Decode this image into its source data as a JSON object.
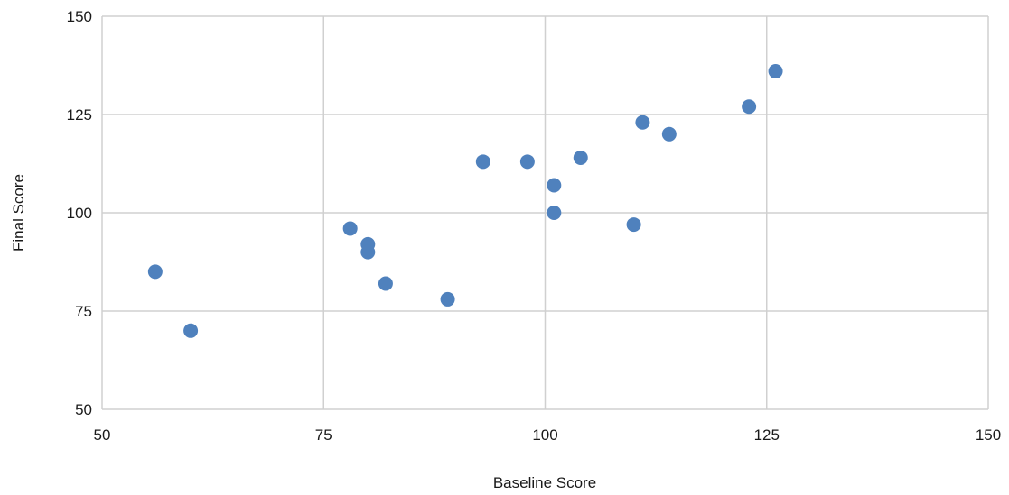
{
  "chart_data": {
    "type": "scatter",
    "title": "",
    "xlabel": "Baseline Score",
    "ylabel": "Final Score",
    "xlim": [
      50,
      150
    ],
    "ylim": [
      50,
      150
    ],
    "xticks": [
      50,
      75,
      100,
      125,
      150
    ],
    "yticks": [
      50,
      75,
      100,
      125,
      150
    ],
    "grid": true,
    "legend": "none",
    "point_color": "#4F81BD",
    "series": [
      {
        "points": [
          {
            "x": 56,
            "y": 85
          },
          {
            "x": 60,
            "y": 70
          },
          {
            "x": 78,
            "y": 96
          },
          {
            "x": 80,
            "y": 92
          },
          {
            "x": 80,
            "y": 90
          },
          {
            "x": 82,
            "y": 82
          },
          {
            "x": 89,
            "y": 78
          },
          {
            "x": 93,
            "y": 113
          },
          {
            "x": 98,
            "y": 113
          },
          {
            "x": 101,
            "y": 107
          },
          {
            "x": 101,
            "y": 100
          },
          {
            "x": 104,
            "y": 114
          },
          {
            "x": 110,
            "y": 97
          },
          {
            "x": 111,
            "y": 123
          },
          {
            "x": 114,
            "y": 120
          },
          {
            "x": 123,
            "y": 127
          },
          {
            "x": 126,
            "y": 136
          }
        ]
      }
    ]
  }
}
